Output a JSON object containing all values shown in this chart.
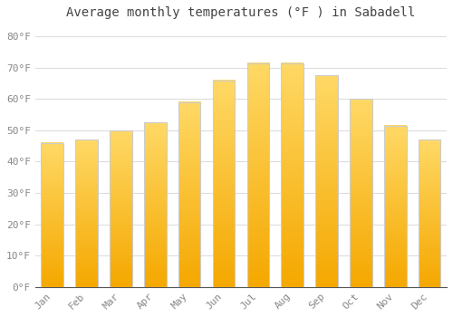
{
  "title": "Average monthly temperatures (°F ) in Sabadell",
  "months": [
    "Jan",
    "Feb",
    "Mar",
    "Apr",
    "May",
    "Jun",
    "Jul",
    "Aug",
    "Sep",
    "Oct",
    "Nov",
    "Dec"
  ],
  "values": [
    46,
    47,
    50,
    52.5,
    59,
    66,
    71.5,
    71.5,
    67.5,
    60,
    51.5,
    47
  ],
  "bar_color_bottom": "#F5A800",
  "bar_color_top": "#FFD966",
  "bar_edge_color": "#cccccc",
  "ylim": [
    0,
    84
  ],
  "yticks": [
    0,
    10,
    20,
    30,
    40,
    50,
    60,
    70,
    80
  ],
  "ytick_labels": [
    "0°F",
    "10°F",
    "20°F",
    "30°F",
    "40°F",
    "50°F",
    "60°F",
    "70°F",
    "80°F"
  ],
  "grid_color": "#dddddd",
  "background_color": "#ffffff",
  "title_fontsize": 10,
  "tick_fontsize": 8,
  "font_family": "monospace",
  "tick_color": "#888888",
  "title_color": "#444444"
}
